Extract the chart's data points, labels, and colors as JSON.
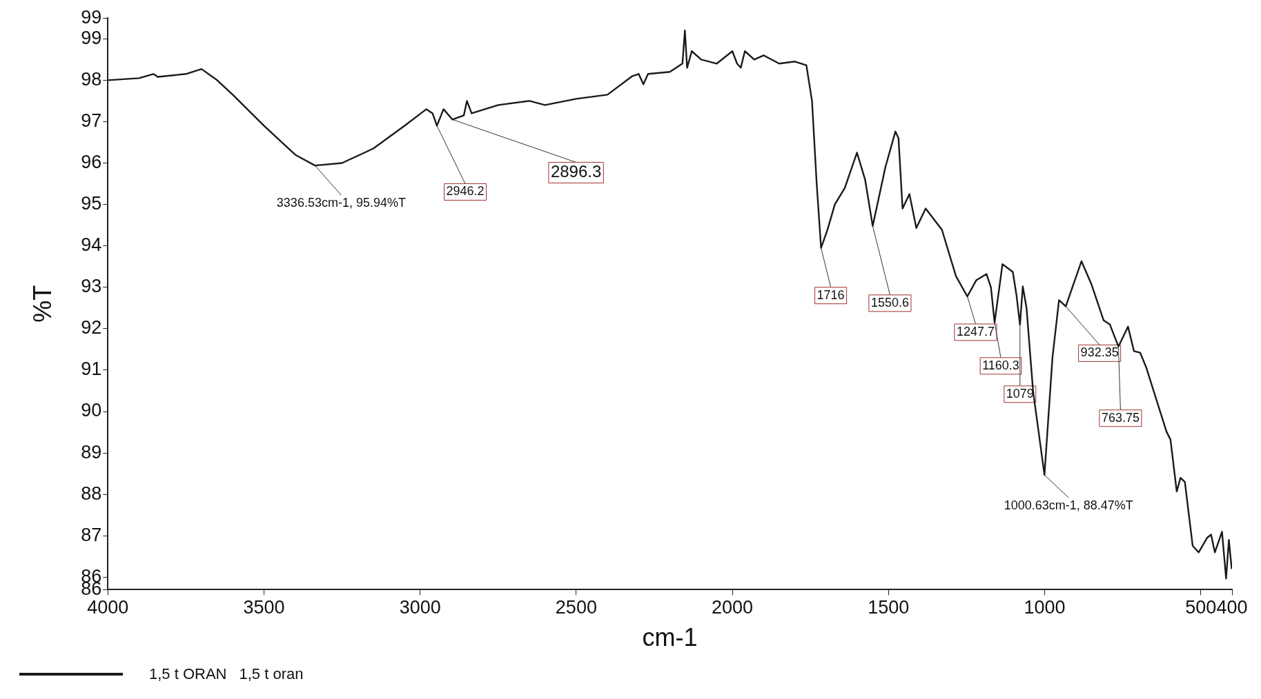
{
  "chart_data": {
    "type": "line",
    "xlabel": "cm-1",
    "ylabel": "%T",
    "xlim": [
      4000,
      400
    ],
    "xticks": [
      4000,
      3500,
      3000,
      2500,
      2000,
      1500,
      1000,
      500,
      400
    ],
    "ylim": [
      85.7,
      99.5
    ],
    "yticks": [
      {
        "value": 99.5,
        "label": "99"
      },
      99,
      98,
      97,
      96,
      95,
      94,
      93,
      92,
      91,
      90,
      89,
      88,
      87,
      86,
      {
        "value": 85.7,
        "label": "86"
      }
    ],
    "grid": false,
    "legend": "bottom",
    "marker": "none",
    "line_style": "solid",
    "series": [
      {
        "name": "1,5 t ORAN",
        "color": "#1a1a1a",
        "x": [
          4000,
          3900,
          3854,
          3840,
          3750,
          3700,
          3650,
          3600,
          3500,
          3400,
          3336.53,
          3250,
          3150,
          3050,
          2980,
          2960,
          2946.2,
          2925,
          2896.3,
          2860,
          2850,
          2835,
          2750,
          2650,
          2600,
          2500,
          2400,
          2320,
          2300,
          2285,
          2270,
          2200,
          2160,
          2152,
          2145,
          2130,
          2100,
          2050,
          2000,
          1985,
          1973,
          1960,
          1930,
          1900,
          1850,
          1800,
          1763,
          1745,
          1730,
          1716,
          1695,
          1672,
          1640,
          1601,
          1575,
          1550.6,
          1510,
          1478,
          1468,
          1455,
          1433,
          1411,
          1381,
          1329,
          1284,
          1247.7,
          1219,
          1186,
          1172,
          1160.3,
          1135,
          1102,
          1090,
          1079,
          1070,
          1058,
          1037,
          1000.63,
          975,
          954,
          932.35,
          882,
          850,
          811,
          791,
          763.75,
          733,
          714,
          694,
          675,
          610,
          597,
          577,
          565,
          551,
          526,
          507,
          480,
          467,
          455,
          432,
          419,
          410,
          401
        ],
        "values": [
          98.0,
          98.05,
          98.15,
          98.08,
          98.15,
          98.27,
          98.0,
          97.65,
          96.9,
          96.2,
          95.94,
          96.0,
          96.35,
          96.9,
          97.3,
          97.2,
          96.9,
          97.3,
          97.05,
          97.15,
          97.5,
          97.2,
          97.4,
          97.5,
          97.4,
          97.55,
          97.65,
          98.1,
          98.15,
          97.9,
          98.15,
          98.2,
          98.4,
          99.2,
          98.3,
          98.7,
          98.5,
          98.4,
          98.7,
          98.4,
          98.3,
          98.7,
          98.5,
          98.6,
          98.4,
          98.45,
          98.36,
          97.5,
          95.5,
          93.95,
          94.4,
          95.0,
          95.4,
          96.25,
          95.6,
          94.48,
          95.9,
          96.76,
          96.6,
          94.9,
          95.25,
          94.43,
          94.9,
          94.39,
          93.27,
          92.78,
          93.17,
          93.32,
          93.0,
          92.15,
          93.56,
          93.37,
          92.8,
          92.1,
          93.02,
          92.5,
          90.49,
          88.47,
          91.3,
          92.69,
          92.54,
          93.63,
          93.07,
          92.2,
          92.1,
          91.57,
          92.05,
          91.46,
          91.42,
          91.07,
          89.52,
          89.32,
          88.07,
          88.4,
          88.3,
          86.76,
          86.6,
          86.95,
          87.03,
          86.6,
          87.1,
          85.97,
          86.9,
          86.2
        ]
      }
    ],
    "annotations": [
      {
        "text": "3336.53cm-1, 95.94%T",
        "x": 3336.53,
        "y": 95.94
      },
      {
        "text": "2946.2",
        "x": 2946.2,
        "y": 96.9
      },
      {
        "text": "2896.3",
        "x": 2896.3,
        "y": 97.05
      },
      {
        "text": "1716",
        "x": 1716,
        "y": 93.95
      },
      {
        "text": "1550.6",
        "x": 1550.6,
        "y": 94.48
      },
      {
        "text": "1247.7",
        "x": 1247.7,
        "y": 92.78
      },
      {
        "text": "1160.3",
        "x": 1160.3,
        "y": 92.15
      },
      {
        "text": "1079",
        "x": 1079,
        "y": 92.1
      },
      {
        "text": "1000.63cm-1, 88.47%T",
        "x": 1000.63,
        "y": 88.47
      },
      {
        "text": "932.35",
        "x": 932.35,
        "y": 92.54
      },
      {
        "text": "763.75",
        "x": 763.75,
        "y": 91.57
      },
      "1,5 t oran"
    ]
  }
}
